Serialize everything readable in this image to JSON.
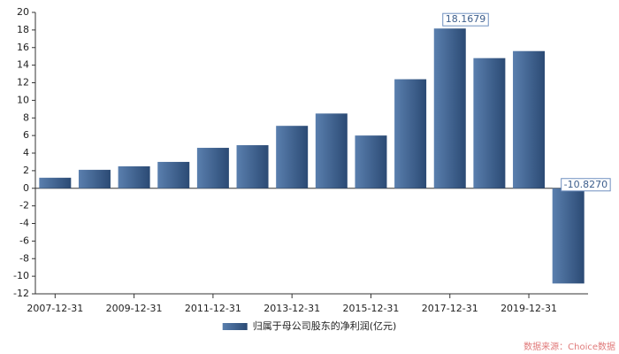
{
  "chart_data": {
    "type": "bar",
    "categories": [
      "2007-12-31",
      null,
      "2009-12-31",
      null,
      "2011-12-31",
      null,
      "2013-12-31",
      null,
      "2015-12-31",
      null,
      "2017-12-31",
      null,
      "2019-12-31",
      null
    ],
    "values": [
      1.2,
      2.1,
      2.5,
      3.0,
      4.6,
      4.9,
      7.1,
      8.5,
      6.0,
      12.4,
      18.1679,
      14.8,
      15.6,
      -10.827
    ],
    "value_labels": [
      null,
      null,
      null,
      null,
      null,
      null,
      null,
      null,
      null,
      null,
      "18.1679",
      null,
      null,
      "-10.8270"
    ],
    "color": "#2b4a74",
    "legend": "归属于母公司股东的净利润(亿元)",
    "source": "数据来源：Choice数据",
    "ylim": [
      -12,
      20
    ],
    "yticks": [
      -12,
      -10,
      -8,
      -6,
      -4,
      -2,
      0,
      2,
      4,
      6,
      8,
      10,
      12,
      14,
      16,
      18,
      20
    ]
  }
}
